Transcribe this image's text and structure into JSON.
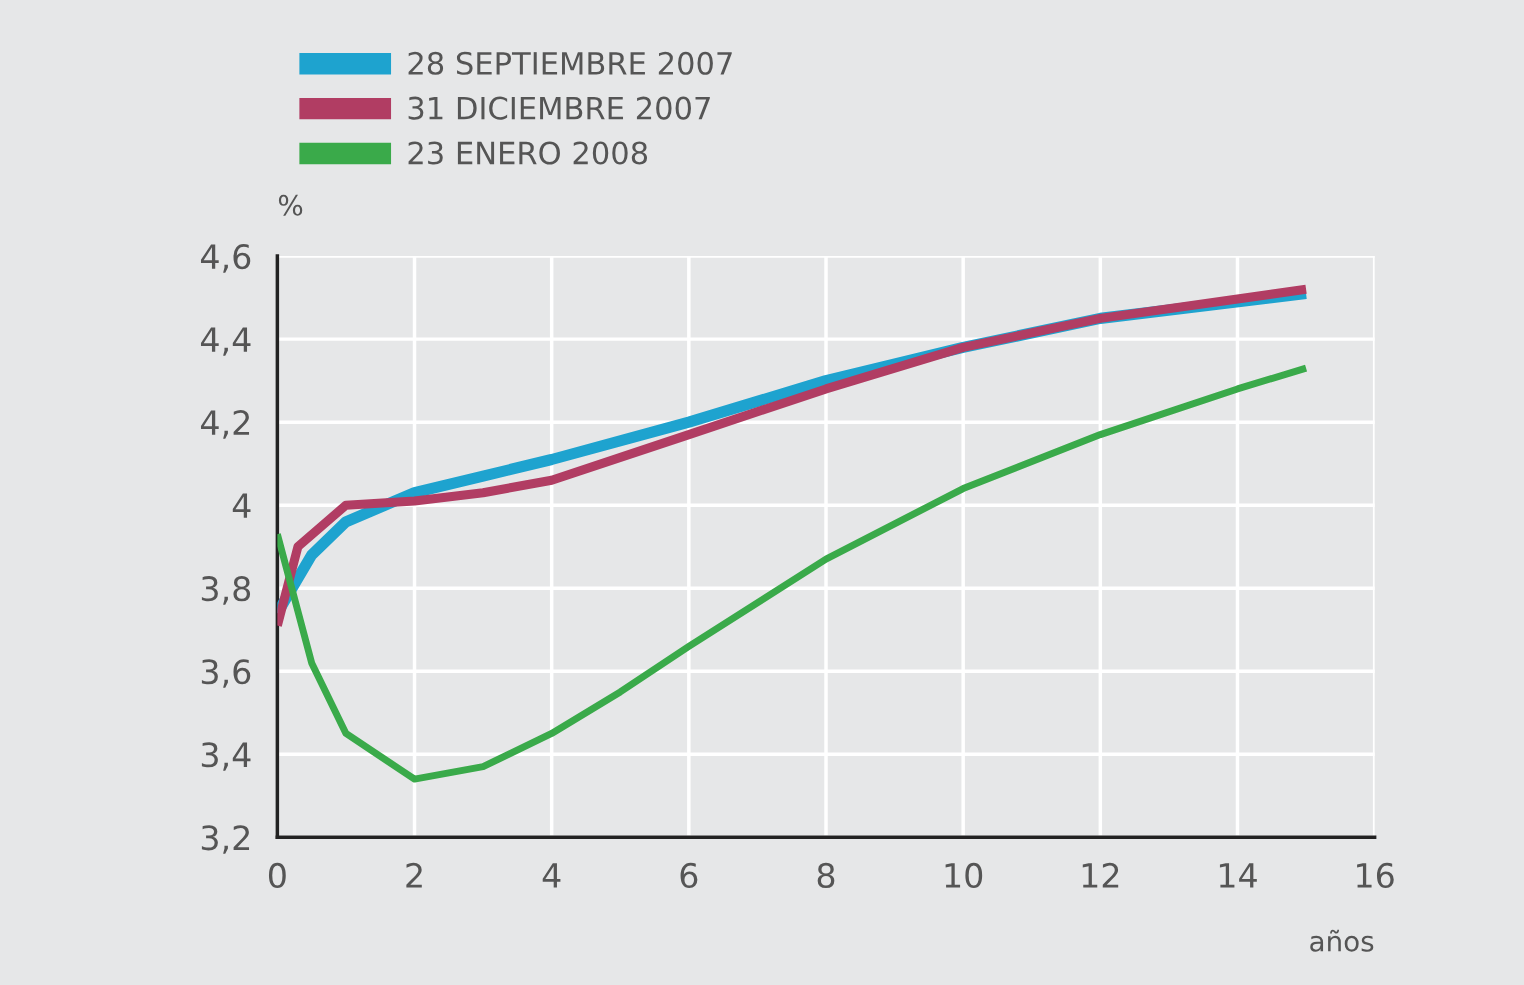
{
  "chart_data": {
    "type": "line",
    "xlabel": "años",
    "ylabel": "%",
    "xlim": [
      0,
      16
    ],
    "xticks": [
      0,
      2,
      4,
      6,
      8,
      10,
      12,
      14,
      16
    ],
    "ylim": [
      3.2,
      4.6
    ],
    "yticks": [
      {
        "value": 3.2,
        "label": "3,2"
      },
      {
        "value": 3.4,
        "label": "3,4"
      },
      {
        "value": 3.6,
        "label": "3,6"
      },
      {
        "value": 3.8,
        "label": "3,8"
      },
      4,
      {
        "value": 4.2,
        "label": "4,2"
      },
      {
        "value": 4.4,
        "label": "4,4"
      },
      {
        "value": 4.6,
        "label": "4,6"
      }
    ],
    "grid": true,
    "legend": "top left",
    "marker": "none",
    "line_style": "solid",
    "series": [
      {
        "name": "28 SEPTIEMBRE 2007",
        "color": "#1ea3cf",
        "x": [
          0,
          0.5,
          1,
          2,
          3,
          4,
          6,
          8,
          10,
          12,
          15
        ],
        "values": [
          3.74,
          3.88,
          3.96,
          4.03,
          4.07,
          4.11,
          4.2,
          4.3,
          4.38,
          4.45,
          4.51
        ]
      },
      {
        "name": "31 DICIEMBRE 2007",
        "color": "#b13d63",
        "x": [
          0,
          0.3,
          1,
          2,
          3,
          4,
          6,
          8,
          10,
          12,
          15
        ],
        "values": [
          3.71,
          3.9,
          4.0,
          4.01,
          4.03,
          4.06,
          4.17,
          4.28,
          4.38,
          4.45,
          4.52
        ]
      },
      {
        "name": "23 ENERO 2008",
        "color": "#3aaa4a",
        "x": [
          0,
          0.5,
          1,
          2,
          3,
          4,
          5,
          6,
          8,
          10,
          12,
          14,
          15
        ],
        "values": [
          3.93,
          3.62,
          3.45,
          3.34,
          3.37,
          3.45,
          3.55,
          3.66,
          3.87,
          4.04,
          4.17,
          4.28,
          4.33
        ]
      }
    ]
  }
}
